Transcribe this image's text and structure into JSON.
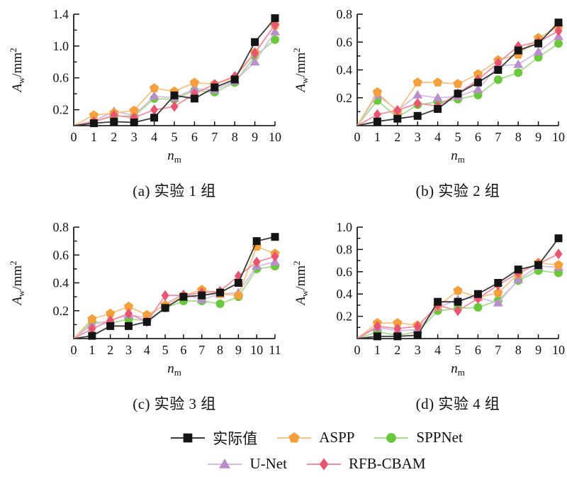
{
  "figure": {
    "background": "#ffffff",
    "text_color": "#111111",
    "axis_color": "#000000",
    "ylabel": "A_w/mm^2",
    "xlabel": "n_m",
    "ylabel_parts": {
      "main": "A",
      "sub": "w",
      "unit": "/mm",
      "sup": "2"
    },
    "xlabel_parts": {
      "main": "n",
      "sub": "m"
    },
    "draw_order": [
      2,
      3,
      1,
      4,
      0
    ],
    "tick_style": "inward",
    "grid": "off",
    "legend_position": "bottom"
  },
  "series_meta": [
    {
      "label": "实际值",
      "marker": "square",
      "color": "#141414",
      "line_color": "#3a3a3a"
    },
    {
      "label": "ASPP",
      "marker": "pentagon",
      "color": "#F4A03C",
      "line_color": "#F5C astonishing"
    },
    {
      "label": "SPPNet",
      "marker": "circle",
      "color": "#6BC83D",
      "line_color": "#A8DB90"
    },
    {
      "label": "U-Net",
      "marker": "triangle",
      "color": "#B98FCB",
      "line_color": "#D7BDE4"
    },
    {
      "label": "RFB-CBAM",
      "marker": "diamond",
      "color": "#E75570",
      "line_color": "#F08FA1"
    }
  ],
  "legend": {
    "rows": [
      [
        "实际值",
        "ASPP",
        "SPPNet"
      ],
      [
        "U-Net",
        "RFB-CBAM"
      ]
    ]
  },
  "chart_data": [
    {
      "id": "a",
      "type": "line",
      "caption": "(a) 实验 1 组",
      "xlabel": "n_m",
      "ylabel": "A_w/mm^2",
      "x": [
        0,
        1,
        2,
        3,
        4,
        5,
        6,
        7,
        8,
        9,
        10
      ],
      "ylim": [
        0,
        1.4
      ],
      "ytick_labels": [
        0.2,
        0.6,
        1.0,
        1.4
      ],
      "ytick_step": 0.2,
      "series": [
        {
          "name": "实际值",
          "values": [
            0,
            0.03,
            0.05,
            0.04,
            0.1,
            0.38,
            0.34,
            0.48,
            0.58,
            1.05,
            1.35
          ]
        },
        {
          "name": "ASPP",
          "values": [
            0,
            0.13,
            0.16,
            0.19,
            0.47,
            0.43,
            0.54,
            0.52,
            0.6,
            0.92,
            1.26
          ]
        },
        {
          "name": "SPPNet",
          "values": [
            0,
            0.05,
            0.12,
            0.12,
            0.34,
            0.33,
            0.44,
            0.42,
            0.54,
            0.87,
            1.08
          ]
        },
        {
          "name": "U-Net",
          "values": [
            0,
            0.06,
            0.18,
            0.13,
            0.37,
            0.35,
            0.46,
            0.45,
            0.56,
            0.8,
            1.18
          ]
        },
        {
          "name": "RFB-CBAM",
          "values": [
            0,
            0.05,
            0.13,
            0.1,
            0.2,
            0.24,
            0.4,
            0.52,
            0.62,
            0.91,
            1.27
          ]
        }
      ]
    },
    {
      "id": "b",
      "type": "line",
      "caption": "(b) 实验 2 组",
      "xlabel": "n_m",
      "ylabel": "A_w/mm^2",
      "x": [
        0,
        1,
        2,
        3,
        4,
        5,
        6,
        7,
        8,
        9,
        10
      ],
      "ylim": [
        0,
        0.8
      ],
      "ytick_labels": [
        0.2,
        0.4,
        0.6,
        0.8
      ],
      "ytick_step": 0.1,
      "series": [
        {
          "name": "实际值",
          "values": [
            0,
            0.03,
            0.05,
            0.07,
            0.12,
            0.23,
            0.31,
            0.4,
            0.54,
            0.59,
            0.74
          ]
        },
        {
          "name": "ASPP",
          "values": [
            0,
            0.24,
            0.1,
            0.31,
            0.31,
            0.3,
            0.37,
            0.47,
            0.51,
            0.63,
            0.71
          ]
        },
        {
          "name": "SPPNet",
          "values": [
            0,
            0.18,
            0.06,
            0.15,
            0.17,
            0.19,
            0.22,
            0.33,
            0.38,
            0.49,
            0.59
          ]
        },
        {
          "name": "U-Net",
          "values": [
            0,
            0.22,
            0.11,
            0.22,
            0.2,
            0.21,
            0.26,
            0.43,
            0.44,
            0.53,
            0.64
          ]
        },
        {
          "name": "RFB-CBAM",
          "values": [
            0,
            0.08,
            0.11,
            0.16,
            0.14,
            0.23,
            0.33,
            0.45,
            0.57,
            0.6,
            0.68
          ]
        }
      ]
    },
    {
      "id": "c",
      "type": "line",
      "caption": "(c) 实验 3 组",
      "xlabel": "n_m",
      "ylabel": "A_w/mm^2",
      "x": [
        0,
        1,
        2,
        3,
        4,
        5,
        6,
        7,
        8,
        9,
        10,
        11
      ],
      "ylim": [
        0,
        0.8
      ],
      "ytick_labels": [
        0.2,
        0.4,
        0.6,
        0.8
      ],
      "ytick_step": 0.1,
      "series": [
        {
          "name": "实际值",
          "values": [
            0,
            0.02,
            0.09,
            0.09,
            0.12,
            0.22,
            0.3,
            0.31,
            0.33,
            0.4,
            0.7,
            0.73
          ]
        },
        {
          "name": "ASPP",
          "values": [
            0,
            0.14,
            0.18,
            0.23,
            0.17,
            0.24,
            0.31,
            0.35,
            0.32,
            0.31,
            0.66,
            0.61
          ]
        },
        {
          "name": "SPPNet",
          "values": [
            0,
            0.12,
            0.11,
            0.14,
            0.13,
            0.22,
            0.27,
            0.27,
            0.25,
            0.3,
            0.5,
            0.52
          ]
        },
        {
          "name": "U-Net",
          "values": [
            0,
            0.1,
            0.13,
            0.17,
            0.15,
            0.25,
            0.32,
            0.28,
            0.32,
            0.33,
            0.52,
            0.55
          ]
        },
        {
          "name": "RFB-CBAM",
          "values": [
            0,
            0.07,
            0.13,
            0.18,
            0.12,
            0.31,
            0.31,
            0.33,
            0.34,
            0.45,
            0.55,
            0.59
          ]
        }
      ]
    },
    {
      "id": "d",
      "type": "line",
      "caption": "(d) 实验 4 组",
      "xlabel": "n_m",
      "ylabel": "A_w/mm^2",
      "x": [
        0,
        1,
        2,
        3,
        4,
        5,
        6,
        7,
        8,
        9,
        10
      ],
      "ylim": [
        0,
        1.0
      ],
      "ytick_labels": [
        0.2,
        0.4,
        0.6,
        0.8,
        1.0
      ],
      "ytick_step": 0.1,
      "series": [
        {
          "name": "实际值",
          "values": [
            0,
            0.02,
            0.02,
            0.03,
            0.33,
            0.33,
            0.4,
            0.5,
            0.62,
            0.66,
            0.9
          ]
        },
        {
          "name": "ASPP",
          "values": [
            0,
            0.14,
            0.14,
            0.12,
            0.29,
            0.43,
            0.37,
            0.41,
            0.58,
            0.68,
            0.66
          ]
        },
        {
          "name": "SPPNet",
          "values": [
            0,
            0.06,
            0.03,
            0.06,
            0.25,
            0.27,
            0.28,
            0.34,
            0.52,
            0.61,
            0.59
          ]
        },
        {
          "name": "U-Net",
          "values": [
            0,
            0.1,
            0.07,
            0.08,
            0.28,
            0.35,
            0.37,
            0.32,
            0.53,
            0.65,
            0.64
          ]
        },
        {
          "name": "RFB-CBAM",
          "values": [
            0,
            0.11,
            0.09,
            0.11,
            0.3,
            0.25,
            0.36,
            0.48,
            0.59,
            0.67,
            0.76
          ]
        }
      ]
    }
  ]
}
